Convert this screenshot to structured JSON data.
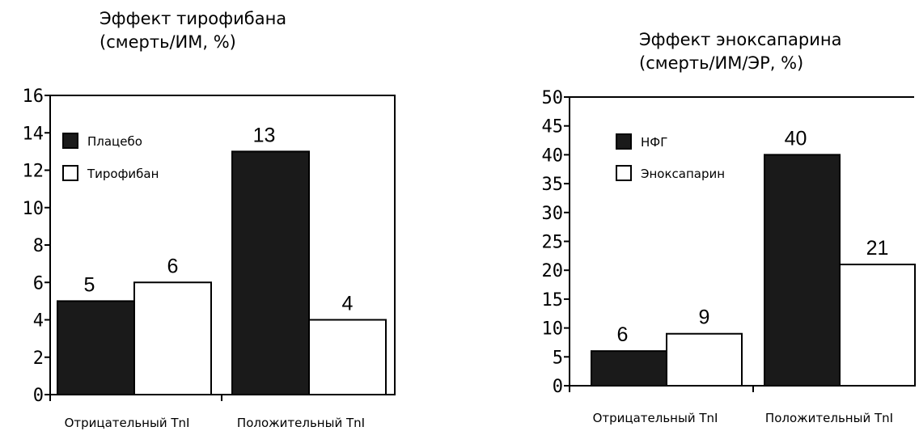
{
  "chart_data": [
    {
      "type": "bar",
      "title_lines": [
        "Эффект тирофибана",
        "(смерть/ИМ, %)"
      ],
      "categories": [
        "Отрицательный TnI",
        "Положительный TnI"
      ],
      "series": [
        {
          "name": "Плацебо",
          "values": [
            5,
            13
          ],
          "color": "#1a1a1a"
        },
        {
          "name": "Тирофибан",
          "values": [
            6,
            4
          ],
          "color": "#ffffff"
        }
      ],
      "ylim": [
        0,
        16
      ],
      "yticks": [
        0,
        2,
        4,
        6,
        8,
        10,
        12,
        14,
        16
      ],
      "legend": "top-left",
      "grid": false
    },
    {
      "type": "bar",
      "title_lines": [
        "Эффект эноксапарина",
        "(смерть/ИМ/ЭР, %)"
      ],
      "categories": [
        "Отрицательный TnI",
        "Положительный TnI"
      ],
      "series": [
        {
          "name": "НФГ",
          "values": [
            6,
            40
          ],
          "color": "#1a1a1a"
        },
        {
          "name": "Эноксапарин",
          "values": [
            9,
            21
          ],
          "color": "#ffffff"
        }
      ],
      "ylim": [
        0,
        50
      ],
      "yticks": [
        0,
        5,
        10,
        15,
        20,
        25,
        30,
        35,
        40,
        45,
        50
      ],
      "legend": "top-left",
      "grid": false
    }
  ]
}
